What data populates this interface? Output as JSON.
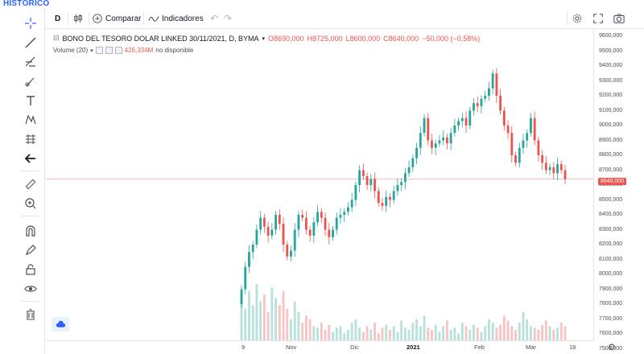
{
  "page_title": "HISTÓRICO",
  "toolbar": {
    "interval_label": "D",
    "compare_label": "Comparar",
    "indicators_label": "Indicadores"
  },
  "legend": {
    "symbol": "BONO DEL TESORO DOLAR LINKED 30/11/2021, D, BYMA",
    "open": "O8690,000",
    "high": "H8725,000",
    "low": "L8600,000",
    "close": "C8640,000",
    "change": "−50,000 (−0,58%)"
  },
  "volume_legend": {
    "label": "Volume (20)",
    "value": "426,334M",
    "status": "no disponible"
  },
  "current_price": "8640,000",
  "price_axis": [
    "9600,000",
    "9500,000",
    "9400,000",
    "9300,000",
    "9200,000",
    "9100,000",
    "9000,000",
    "8900,000",
    "8800,000",
    "8700,000",
    "8600,000",
    "8500,000",
    "8400,000",
    "8300,000",
    "8200,000",
    "8100,000",
    "8000,000",
    "7900,000",
    "7800,000",
    "7700,000",
    "7600,000",
    "7500,000"
  ],
  "time_axis": [
    {
      "label": "9",
      "bold": false
    },
    {
      "label": "Nov",
      "bold": false
    },
    {
      "label": "Dic",
      "bold": false
    },
    {
      "label": "2021",
      "bold": true
    },
    {
      "label": "Feb",
      "bold": false
    },
    {
      "label": "Mar",
      "bold": false
    },
    {
      "label": "18",
      "bold": false
    }
  ],
  "colors": {
    "up": "#26a69a",
    "down": "#ef5350",
    "vol_up": "#b7e1da",
    "vol_down": "#f7c4c2",
    "accent": "#2962ff"
  },
  "chart_data": {
    "type": "candlestick",
    "title": "BONO DEL TESORO DOLAR LINKED 30/11/2021, D, BYMA",
    "ylim": [
      7500,
      9600
    ],
    "x_ticks": [
      "9",
      "Nov",
      "Dic",
      "2021",
      "Feb",
      "Mar",
      "18"
    ],
    "series": [
      {
        "name": "Price",
        "close": [
          7900,
          8050,
          8150,
          8200,
          8300,
          8380,
          8320,
          8260,
          8300,
          8400,
          8340,
          8200,
          8120,
          8160,
          8300,
          8400,
          8380,
          8300,
          8260,
          8350,
          8420,
          8380,
          8300,
          8250,
          8300,
          8380,
          8400,
          8420,
          8450,
          8500,
          8600,
          8700,
          8660,
          8600,
          8640,
          8560,
          8480,
          8460,
          8520,
          8500,
          8560,
          8600,
          8620,
          8680,
          8720,
          8780,
          8850,
          8950,
          9050,
          8900,
          8850,
          8880,
          8900,
          8920,
          8880,
          8950,
          9000,
          9030,
          9050,
          9000,
          9100,
          9150,
          9130,
          9180,
          9200,
          9250,
          9350,
          9200,
          9100,
          9000,
          8950,
          8800,
          8750,
          8850,
          8900,
          8950,
          9050,
          8900,
          8800,
          8750,
          8700,
          8720,
          8680,
          8740,
          8700,
          8640
        ]
      },
      {
        "name": "Volume",
        "values": [
          60,
          45,
          70,
          50,
          80,
          55,
          65,
          40,
          75,
          60,
          50,
          70,
          45,
          30,
          55,
          40,
          25,
          35,
          30,
          20,
          18,
          25,
          15,
          22,
          12,
          18,
          20,
          10,
          15,
          25,
          30,
          18,
          12,
          20,
          15,
          25,
          10,
          18,
          22,
          15,
          20,
          12,
          28,
          18,
          15,
          25,
          30,
          20,
          35,
          18,
          15,
          22,
          12,
          20,
          28,
          15,
          18,
          10,
          25,
          20,
          15,
          22,
          18,
          12,
          20,
          30,
          25,
          18,
          22,
          35,
          28,
          20,
          15,
          25,
          40,
          30,
          20,
          18,
          15,
          22,
          28,
          20,
          15,
          18,
          25,
          20
        ]
      }
    ]
  }
}
